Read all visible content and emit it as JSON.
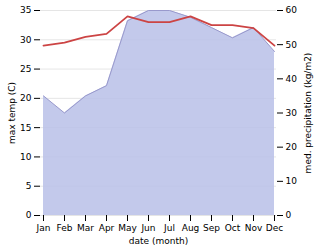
{
  "chart_data": {
    "type": "line",
    "xlabel": "date (month)",
    "ylabel": "max temp (C)",
    "y2label": "med. precipitation (kg/m2)",
    "categories": [
      "Jan",
      "Feb",
      "Mar",
      "Apr",
      "May",
      "Jun",
      "Jul",
      "Aug",
      "Sep",
      "Oct",
      "Nov",
      "Dec"
    ],
    "series": [
      {
        "type": "area",
        "axis": "y2",
        "color": "#b8c0e8",
        "values": [
          35.0,
          30.0,
          35.0,
          38.0,
          57.0,
          60.0,
          60.0,
          58.0,
          55.0,
          52.0,
          55.0,
          48.0
        ]
      },
      {
        "type": "line",
        "axis": "y2",
        "color": "#9999cc",
        "values": [
          35.0,
          30.0,
          35.0,
          38.0,
          57.0,
          60.0,
          60.0,
          58.0,
          55.0,
          52.0,
          55.0,
          48.0
        ]
      },
      {
        "type": "line",
        "color": "#cc4444",
        "values": [
          29.0,
          29.5,
          30.5,
          31.0,
          34.0,
          33.0,
          33.0,
          34.0,
          32.5,
          32.5,
          32.0,
          29.0
        ]
      }
    ],
    "ylim": [
      0,
      35
    ],
    "yticks": [
      0,
      5,
      10,
      15,
      20,
      25,
      30,
      35
    ],
    "y2lim": [
      0,
      60
    ],
    "y2ticks": [
      0,
      10,
      20,
      30,
      40,
      50,
      60
    ],
    "grid": true
  }
}
